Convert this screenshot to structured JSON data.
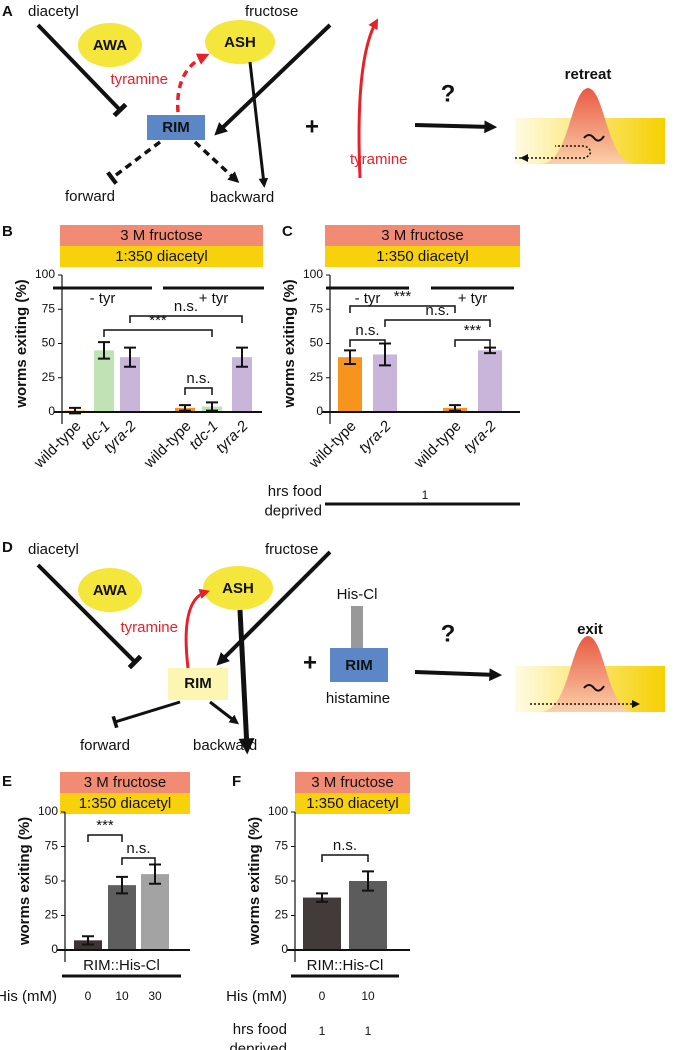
{
  "diagram_a": {
    "panel": "A",
    "stimuli": [
      "diacetyl",
      "fructose"
    ],
    "neurons": [
      "AWA",
      "ASH",
      "RIM"
    ],
    "transmitter": "tyramine",
    "outputs": [
      "forward",
      "backward"
    ],
    "operator": "+",
    "treatment": "tyramine",
    "question": "?",
    "outcome": "retreat"
  },
  "diagram_d": {
    "panel": "D",
    "stimuli": [
      "diacetyl",
      "fructose"
    ],
    "neurons": [
      "AWA",
      "ASH",
      "RIM"
    ],
    "transmitter": "tyramine",
    "outputs": [
      "forward",
      "backward"
    ],
    "operator": "+",
    "treatment": {
      "label": "His-Cl",
      "target": "RIM",
      "ligand": "histamine"
    },
    "question": "?",
    "outcome": "exit"
  },
  "chart_data": [
    {
      "type": "bar",
      "panel": "B",
      "banners": [
        {
          "text": "3 M fructose",
          "color": "#f28b74"
        },
        {
          "text": "1:350 diacetyl",
          "color": "#f6d10c"
        }
      ],
      "ylabel": "worms exiting (%)",
      "ylim": [
        0,
        100
      ],
      "yticks": [
        0,
        25,
        50,
        75,
        100
      ],
      "categories": [
        "wild-type",
        "tdc-1",
        "tyra-2",
        "wild-type",
        "tdc-1",
        "tyra-2"
      ],
      "values": [
        1,
        45,
        40,
        3,
        4,
        40
      ],
      "errors": [
        2,
        6,
        7,
        2,
        3,
        7
      ],
      "colors": [
        "#f7941d",
        "#bfe3b4",
        "#c9b4da",
        "#f7941d",
        "#bfe3b4",
        "#c9b4da"
      ],
      "groups": [
        {
          "label": "- tyr",
          "span": 3
        },
        {
          "label": "+ tyr",
          "span": 3
        }
      ],
      "group_position": "top",
      "significance": [
        {
          "label": "***",
          "from": 1,
          "to": 4
        },
        {
          "label": "n.s.",
          "from": 2,
          "to": 5
        },
        {
          "label": "n.s.",
          "from": 3,
          "to": 4
        }
      ]
    },
    {
      "type": "bar",
      "panel": "C",
      "banners": [
        {
          "text": "3 M fructose",
          "color": "#f28b74"
        },
        {
          "text": "1:350 diacetyl",
          "color": "#f6d10c"
        }
      ],
      "ylabel": "worms exiting (%)",
      "ylim": [
        0,
        100
      ],
      "yticks": [
        0,
        25,
        50,
        75,
        100
      ],
      "categories": [
        "wild-type",
        "tyra-2",
        "wild-type",
        "tyra-2"
      ],
      "values": [
        40,
        42,
        3,
        45
      ],
      "errors": [
        5,
        8,
        2,
        2
      ],
      "colors": [
        "#f7941d",
        "#c9b4da",
        "#f7941d",
        "#c9b4da"
      ],
      "groups": [
        {
          "label": "- tyr",
          "span": 2
        },
        {
          "label": "+ tyr",
          "span": 2
        }
      ],
      "group_position": "top",
      "significance": [
        {
          "label": "***",
          "from": 0,
          "to": 2
        },
        {
          "label": "n.s.",
          "from": 1,
          "to": 3
        },
        {
          "label": "n.s.",
          "from": 0,
          "to": 1
        },
        {
          "label": "***",
          "from": 2,
          "to": 3
        }
      ],
      "footer": {
        "label": "hrs food deprived",
        "values": [
          1
        ]
      }
    },
    {
      "type": "bar",
      "panel": "E",
      "banners": [
        {
          "text": "3 M fructose",
          "color": "#f28b74"
        },
        {
          "text": "1:350 diacetyl",
          "color": "#f6d10c"
        }
      ],
      "ylabel": "worms exiting (%)",
      "ylim": [
        0,
        100
      ],
      "yticks": [
        0,
        25,
        50,
        75,
        100
      ],
      "xlabel": "His (mM)",
      "categories": [
        "0",
        "10",
        "30"
      ],
      "values": [
        7,
        47,
        55
      ],
      "errors": [
        3,
        6,
        7
      ],
      "colors": [
        "#3e3434",
        "#5e5e5e",
        "#a3a3a3"
      ],
      "groups": [
        {
          "label": "RIM::His-Cl",
          "span": 3
        }
      ],
      "group_position": "bottom",
      "significance": [
        {
          "label": "***",
          "from": 0,
          "to": 1
        },
        {
          "label": "n.s.",
          "from": 1,
          "to": 2
        }
      ]
    },
    {
      "type": "bar",
      "panel": "F",
      "banners": [
        {
          "text": "3 M fructose",
          "color": "#f28b74"
        },
        {
          "text": "1:350 diacetyl",
          "color": "#f6d10c"
        }
      ],
      "ylabel": "worms exiting (%)",
      "ylim": [
        0,
        100
      ],
      "yticks": [
        0,
        25,
        50,
        75,
        100
      ],
      "xlabel": "His (mM)",
      "categories": [
        "0",
        "10"
      ],
      "values": [
        38,
        50
      ],
      "errors": [
        3,
        7
      ],
      "colors": [
        "#433a3a",
        "#5c5c5c"
      ],
      "groups": [
        {
          "label": "RIM::His-Cl",
          "span": 2
        }
      ],
      "group_position": "bottom",
      "significance": [
        {
          "label": "n.s.",
          "from": 0,
          "to": 1
        }
      ],
      "footer": {
        "label": "hrs food deprived",
        "values": [
          1,
          1
        ]
      }
    }
  ]
}
